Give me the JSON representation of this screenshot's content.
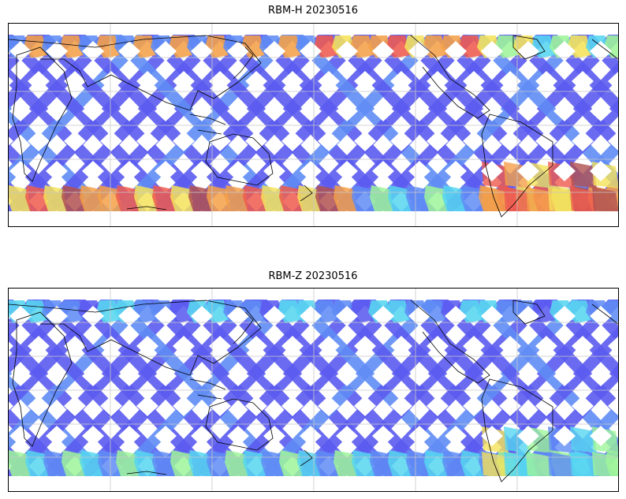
{
  "panels": [
    {
      "title": "RBM-H 20230516",
      "south_band_level": "high",
      "north_band_level": "mixed",
      "east_hotspot_level": "high"
    },
    {
      "title": "RBM-Z 20230516",
      "south_band_level": "medium",
      "north_band_level": "low",
      "east_hotspot_level": "medium"
    }
  ],
  "colors": {
    "low": "#5b5bf0",
    "low2": "#5f8cf5",
    "cyan": "#56d6f0",
    "green": "#9ef59a",
    "yellow": "#f5e25a",
    "orange": "#f5a048",
    "red": "#ee5a4e",
    "darkred": "#b05050",
    "coast": "#000000",
    "grid": "#c8c8c8"
  }
}
